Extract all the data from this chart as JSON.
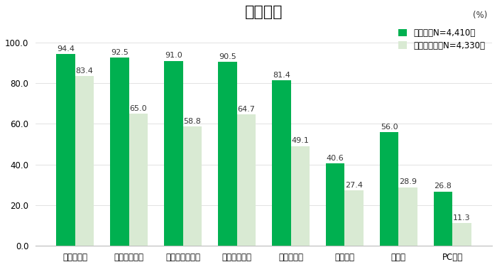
{
  "title": "全国平均",
  "percent_label": "(%)",
  "categories": [
    "ヤマダ電機",
    "ビックカメラ",
    "ヨドバシカメラ",
    "ケーズデンキ",
    "エディオン",
    "上新電機",
    "ノジマ",
    "PCデポ"
  ],
  "recognition": [
    94.4,
    92.5,
    91.0,
    90.5,
    81.4,
    40.6,
    56.0,
    26.8
  ],
  "usage": [
    83.4,
    65.0,
    58.8,
    64.7,
    49.1,
    27.4,
    28.9,
    11.3
  ],
  "recognition_color": "#00b050",
  "usage_color": "#d9ead3",
  "legend_recognition": "認知率（N=4,410）",
  "legend_usage": "利用経験率（N=4,330）",
  "ylim": [
    0,
    108
  ],
  "yticks": [
    0.0,
    20.0,
    40.0,
    60.0,
    80.0,
    100.0
  ],
  "bar_width": 0.35,
  "background_color": "#ffffff",
  "title_fontsize": 16,
  "label_fontsize": 8,
  "tick_fontsize": 8.5,
  "legend_fontsize": 8.5
}
